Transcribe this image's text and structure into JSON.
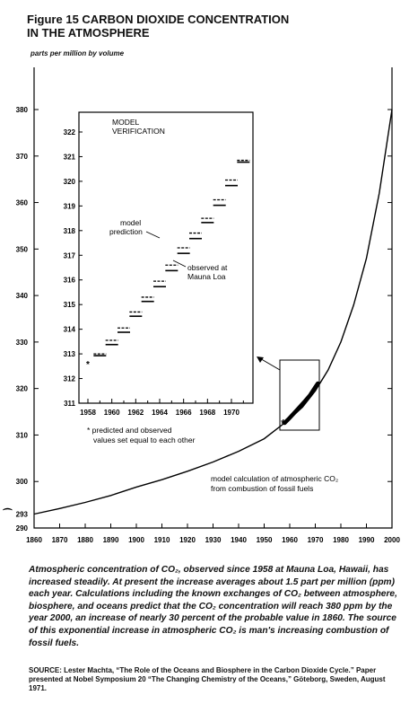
{
  "figure": {
    "title_line1": "Figure 15 CARBON DIOXIDE CONCENTRATION",
    "title_line2": "IN THE ATMOSPHERE",
    "units_label": "parts per million by volume"
  },
  "chart_data": [
    {
      "type": "line",
      "title": "",
      "xlabel": "",
      "ylabel": "parts per million by volume",
      "xlim": [
        1860,
        2000
      ],
      "ylim": [
        290,
        380
      ],
      "x_ticks": [
        1860,
        1870,
        1880,
        1890,
        1900,
        1910,
        1920,
        1930,
        1940,
        1950,
        1960,
        1970,
        1980,
        1990,
        2000
      ],
      "y_ticks": [
        290,
        300,
        310,
        320,
        330,
        340,
        350,
        360,
        370,
        380
      ],
      "extra_y_tick": 293,
      "grid": false,
      "series": [
        {
          "name": "model calculation of atmospheric CO₂ from combustion of fossil fuels",
          "x": [
            1860,
            1870,
            1880,
            1890,
            1900,
            1910,
            1920,
            1930,
            1940,
            1950,
            1958,
            1960,
            1965,
            1970,
            1975,
            1980,
            1985,
            1990,
            1995,
            2000
          ],
          "y": [
            293,
            294.2,
            295.5,
            297,
            298.8,
            300.4,
            302.2,
            304.2,
            306.5,
            309.2,
            312.6,
            313.5,
            316,
            319.5,
            324,
            330,
            338,
            348,
            362,
            380
          ]
        },
        {
          "name": "observed at Mauna Loa",
          "x": [
            1958,
            1960,
            1962,
            1964,
            1966,
            1968,
            1970,
            1971
          ],
          "y": [
            312.6,
            313.7,
            314.9,
            316.1,
            317.3,
            318.6,
            320.3,
            321.1
          ]
        }
      ],
      "annotations": [
        {
          "text_line1": "model calculation of atmospheric CO₂",
          "text_line2": "from combustion of fossil fuels"
        }
      ]
    },
    {
      "type": "scatter",
      "title": "MODEL VERIFICATION",
      "title_line1": "MODEL",
      "title_line2": "VERIFICATION",
      "xlim": [
        1958,
        1972
      ],
      "ylim": [
        311,
        322
      ],
      "x_ticks": [
        1958,
        1960,
        1962,
        1964,
        1966,
        1968,
        1970
      ],
      "y_ticks": [
        311,
        312,
        313,
        314,
        315,
        316,
        317,
        318,
        319,
        320,
        321,
        322
      ],
      "series": [
        {
          "name": "model prediction",
          "x": [
            1959,
            1960,
            1961,
            1962,
            1963,
            1964,
            1965,
            1966,
            1967,
            1968,
            1969,
            1970,
            1971
          ],
          "y": [
            313.0,
            313.55,
            314.05,
            314.7,
            315.3,
            315.95,
            316.6,
            317.3,
            317.9,
            318.5,
            319.25,
            320.05,
            320.85
          ]
        },
        {
          "name": "observed at Mauna Loa",
          "x": [
            1959,
            1960,
            1961,
            1962,
            1963,
            1964,
            1965,
            1966,
            1967,
            1968,
            1969,
            1970,
            1971
          ],
          "y": [
            313.0,
            313.45,
            313.95,
            314.6,
            315.2,
            315.8,
            316.45,
            317.15,
            317.75,
            318.4,
            319.1,
            319.9,
            320.85
          ]
        }
      ],
      "marker": {
        "x": 1958,
        "y": 312.6,
        "label": "*"
      },
      "labels": {
        "model_line1": "model",
        "model_line2": "prediction",
        "observed_line1": "observed at",
        "observed_line2": "Mauna Loa",
        "note_line1": "* predicted and observed",
        "note_line2": "values set equal to each other"
      }
    }
  ],
  "caption": {
    "text": "Atmospheric concentration of CO₂, observed since 1958 at Mauna Loa, Hawaii, has increased steadily. At present the increase averages about 1.5 part per million (ppm) each year. Calculations including the known exchanges of CO₂ between atmosphere, biosphere, and oceans predict that the CO₂ concentration will reach 380 ppm by the year 2000, an increase of nearly 30 percent of the probable value in 1860. The source of this exponential increase in atmospheric CO₂ is man's increasing combustion of fossil fuels."
  },
  "source": {
    "label": "SOURCE:",
    "text": " Lester Machta, “The Role of the Oceans and Biosphere in the Carbon Dioxide Cycle.” Paper presented at Nobel Symposium 20 “The Changing Chemistry of the Oceans,” Göteborg, Sweden, August 1971."
  }
}
